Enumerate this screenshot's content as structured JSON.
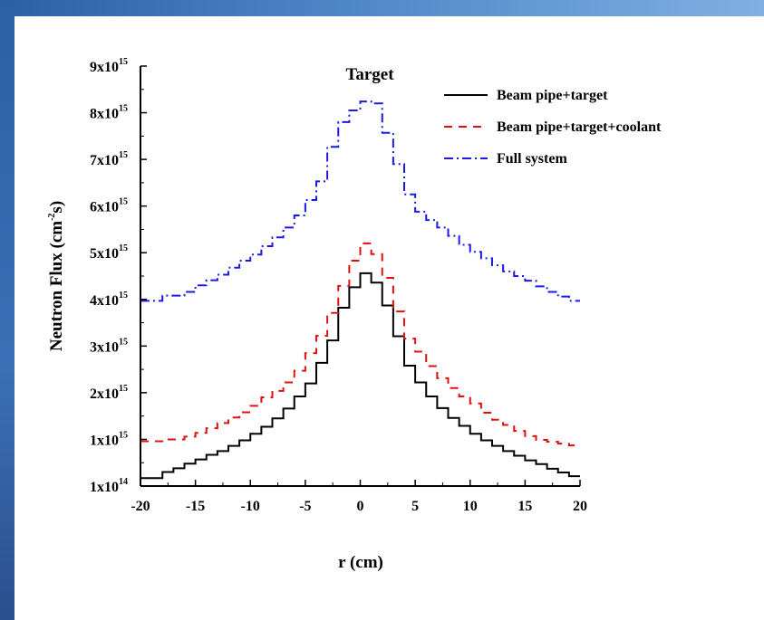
{
  "chart_data": {
    "type": "line",
    "title": "Target",
    "xlabel": "r (cm)",
    "ylabel": "Neutron Flux (cm",
    "ylabel_sup": "-2",
    "ylabel_end": "s)",
    "xlim": [
      -20,
      20
    ],
    "ylim": [
      100000000000000.0,
      9000000000000000.0
    ],
    "x_ticks": [
      -20,
      -15,
      -10,
      -5,
      0,
      5,
      10,
      15,
      20
    ],
    "x_tick_labels": [
      "-20",
      "-15",
      "-10",
      "-5",
      "0",
      "5",
      "10",
      "15",
      "20"
    ],
    "y_ticks": [
      {
        "value": 100000000000000.0,
        "base": "1x10",
        "exp": "14"
      },
      {
        "value": 1000000000000000.0,
        "base": "1x10",
        "exp": "15"
      },
      {
        "value": 2000000000000000.0,
        "base": "2x10",
        "exp": "15"
      },
      {
        "value": 3000000000000000.0,
        "base": "3x10",
        "exp": "15"
      },
      {
        "value": 4000000000000000.0,
        "base": "4x10",
        "exp": "15"
      },
      {
        "value": 5000000000000000.0,
        "base": "5x10",
        "exp": "15"
      },
      {
        "value": 6000000000000000.0,
        "base": "6x10",
        "exp": "15"
      },
      {
        "value": 7000000000000000.0,
        "base": "7x10",
        "exp": "15"
      },
      {
        "value": 8000000000000000.0,
        "base": "8x10",
        "exp": "15"
      },
      {
        "value": 9000000000000000.0,
        "base": "9x10",
        "exp": "15"
      }
    ],
    "grid": false,
    "legend_position": "top-right",
    "x": [
      -20,
      -19,
      -18,
      -17,
      -16,
      -15,
      -14,
      -13,
      -12,
      -11,
      -10,
      -9,
      -8,
      -7,
      -6,
      -5,
      -4,
      -3,
      -2,
      -1,
      0,
      1,
      2,
      3,
      4,
      5,
      6,
      7,
      8,
      9,
      10,
      11,
      12,
      13,
      14,
      15,
      16,
      17,
      18,
      19,
      20
    ],
    "series": [
      {
        "name": "Beam pipe+target",
        "color": "#000000",
        "dash": "solid",
        "values": [
          0.17,
          0.17,
          0.3,
          0.38,
          0.48,
          0.57,
          0.67,
          0.75,
          0.86,
          0.98,
          1.12,
          1.27,
          1.45,
          1.66,
          1.92,
          2.2,
          2.64,
          3.12,
          3.82,
          4.26,
          4.56,
          4.36,
          3.87,
          3.21,
          2.58,
          2.22,
          1.92,
          1.67,
          1.46,
          1.29,
          1.12,
          0.98,
          0.86,
          0.75,
          0.65,
          0.55,
          0.47,
          0.37,
          0.29,
          0.21,
          0.14
        ]
      },
      {
        "name": "Beam pipe+target+coolant",
        "color": "#e01010",
        "dash": "dash",
        "values": [
          0.96,
          0.96,
          1.0,
          1.0,
          1.06,
          1.14,
          1.24,
          1.35,
          1.47,
          1.58,
          1.72,
          1.9,
          2.04,
          2.22,
          2.47,
          2.85,
          3.22,
          3.71,
          4.29,
          4.83,
          5.2,
          4.97,
          4.46,
          3.74,
          3.16,
          2.88,
          2.57,
          2.31,
          2.1,
          1.92,
          1.77,
          1.57,
          1.42,
          1.31,
          1.18,
          1.07,
          0.99,
          0.95,
          0.91,
          0.87,
          0.85
        ]
      },
      {
        "name": "Full system",
        "color": "#1a1ae6",
        "dash": "dashdot",
        "values": [
          3.97,
          3.97,
          4.08,
          4.08,
          4.16,
          4.3,
          4.41,
          4.53,
          4.68,
          4.83,
          4.96,
          5.14,
          5.33,
          5.54,
          5.8,
          6.13,
          6.53,
          7.27,
          7.8,
          8.05,
          8.24,
          8.2,
          7.57,
          6.9,
          6.25,
          5.88,
          5.7,
          5.54,
          5.36,
          5.17,
          5.02,
          4.88,
          4.73,
          4.6,
          4.5,
          4.4,
          4.28,
          4.16,
          4.06,
          3.97,
          3.9
        ]
      }
    ]
  }
}
